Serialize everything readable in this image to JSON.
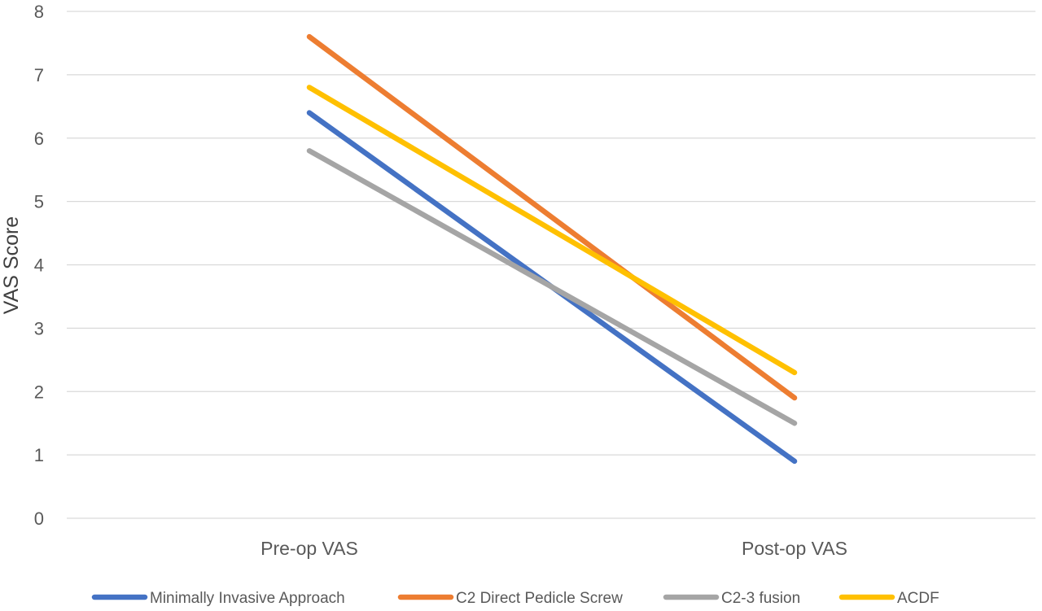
{
  "chart_data": {
    "type": "line",
    "title": "",
    "xlabel": "",
    "ylabel": "VAS Score",
    "categories": [
      "Pre-op VAS",
      "Post-op VAS"
    ],
    "ylim": [
      0,
      8
    ],
    "yticks": [
      0,
      1,
      2,
      3,
      4,
      5,
      6,
      7,
      8
    ],
    "grid": true,
    "legend_position": "bottom",
    "series": [
      {
        "name": "Minimally Invasive Approach",
        "values": [
          6.4,
          0.9
        ],
        "color": "#4472C4"
      },
      {
        "name": "C2 Direct Pedicle Screw",
        "values": [
          7.6,
          1.9
        ],
        "color": "#ED7D31"
      },
      {
        "name": "C2-3 fusion",
        "values": [
          5.8,
          1.5
        ],
        "color": "#A5A5A5"
      },
      {
        "name": "ACDF",
        "values": [
          6.8,
          2.3
        ],
        "color": "#FFC000"
      }
    ]
  }
}
